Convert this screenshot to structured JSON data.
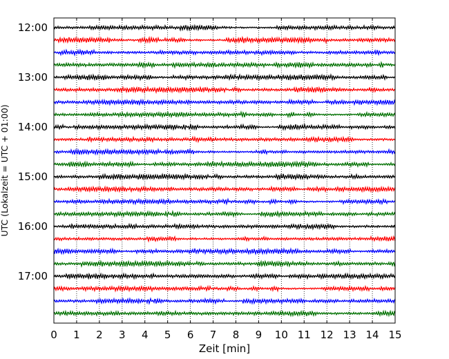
{
  "chart_data": {
    "type": "line",
    "title": "",
    "xlabel": "Zeit  [min]",
    "ylabel": "UTC (Lokalzeit = UTC + 01:00)",
    "xlim": [
      0,
      15
    ],
    "x_ticks": [
      "0",
      "1",
      "2",
      "3",
      "4",
      "5",
      "6",
      "7",
      "8",
      "9",
      "10",
      "11",
      "12",
      "13",
      "14",
      "15"
    ],
    "y_ticks": [
      "12:00",
      "13:00",
      "14:00",
      "15:00",
      "16:00",
      "17:00"
    ],
    "grid": "vertical dotted lines at each minute",
    "legend": "none",
    "trace_interval_minutes": 15,
    "first_trace": "12:00",
    "trace_colors_cycle": [
      "#000000",
      "#ff0000",
      "#0000ff",
      "#007000"
    ],
    "trace_count": 24
  }
}
